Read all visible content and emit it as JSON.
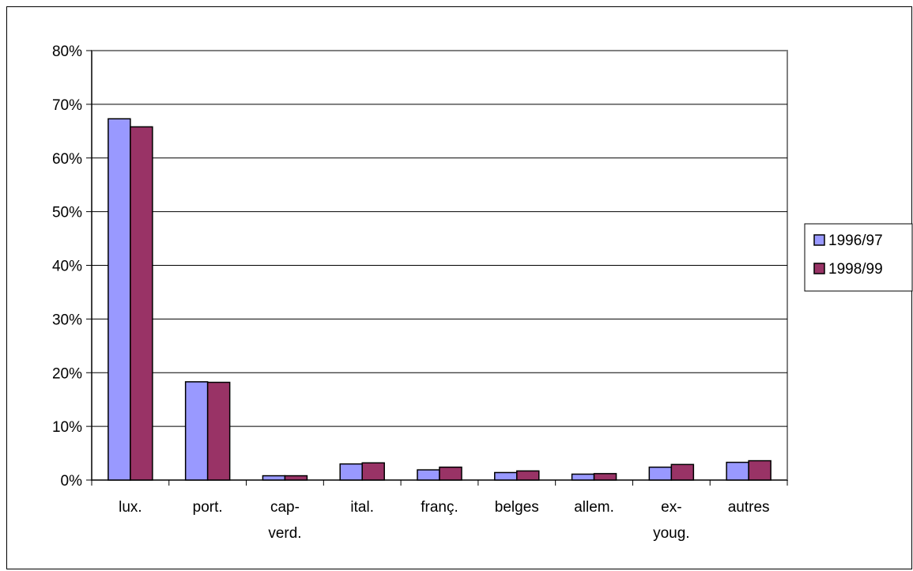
{
  "chart_data": {
    "type": "bar",
    "categories": [
      [
        "lux."
      ],
      [
        "port."
      ],
      [
        "cap-",
        "verd."
      ],
      [
        "ital."
      ],
      [
        "franç."
      ],
      [
        "belges"
      ],
      [
        "allem."
      ],
      [
        "ex-",
        "youg."
      ],
      [
        "autres"
      ]
    ],
    "series": [
      {
        "name": "1996/97",
        "color": "#9999FF",
        "values": [
          67.3,
          18.3,
          0.8,
          3.0,
          1.9,
          1.4,
          1.1,
          2.4,
          3.3
        ]
      },
      {
        "name": "1998/99",
        "color": "#993366",
        "values": [
          65.8,
          18.2,
          0.8,
          3.2,
          2.4,
          1.7,
          1.2,
          2.9,
          3.6
        ]
      }
    ],
    "yticks": [
      "0%",
      "10%",
      "20%",
      "30%",
      "40%",
      "50%",
      "60%",
      "70%",
      "80%"
    ],
    "ylim": [
      0,
      80
    ],
    "grid": true,
    "legend_position": "right"
  }
}
